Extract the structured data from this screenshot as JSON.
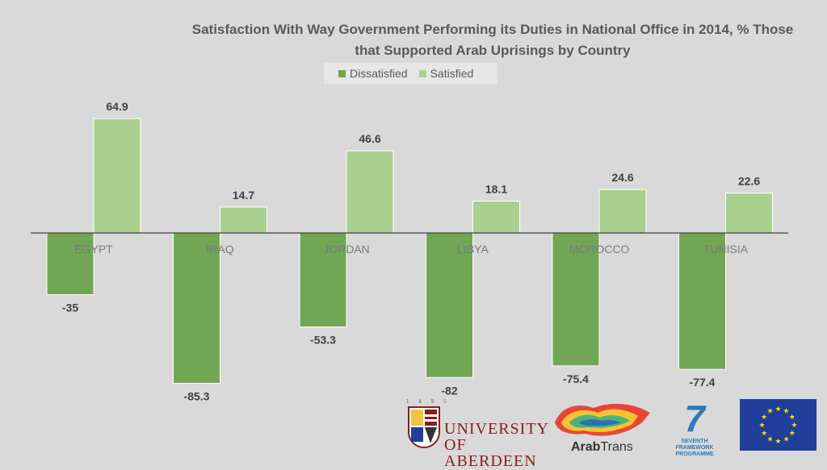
{
  "chart_data": {
    "type": "bar",
    "title_line1": "Satisfaction With Way Government Performing its Duties in National Office in 2014, % Those",
    "title_line2": "that Supported Arab Uprisings by Country",
    "categories": [
      "EGYPT",
      "IRAQ",
      "JORDAN",
      "LIBYA",
      "MOROCCO",
      "TUNISIA"
    ],
    "series": [
      {
        "name": "Dissatisfied",
        "color": "#70a654",
        "values": [
          -35,
          -85.3,
          -53.3,
          -82,
          -75.4,
          -77.4
        ]
      },
      {
        "name": "Satisfied",
        "color": "#a9d08e",
        "values": [
          64.9,
          14.7,
          46.6,
          18.1,
          24.6,
          22.6
        ]
      }
    ],
    "value_labels": {
      "Dissatisfied": [
        "-35",
        "-85.3",
        "-53.3",
        "-82",
        "-75.4",
        "-77.4"
      ],
      "Satisfied": [
        "64.9",
        "14.7",
        "46.6",
        "18.1",
        "24.6",
        "22.6"
      ]
    },
    "ylim": [
      -100,
      70
    ],
    "legend_position": "top"
  },
  "logos": {
    "aberdeen_years": "1 4 9 5",
    "aberdeen_line1": "UNIVERSITY",
    "aberdeen_line2": "OF ABERDEEN",
    "arabtrans_bold": "Arab",
    "arabtrans_rest": "Trans",
    "fp7_number": "7",
    "fp7_line1": "SEVENTH FRAMEWORK",
    "fp7_line2": "PROGRAMME"
  }
}
